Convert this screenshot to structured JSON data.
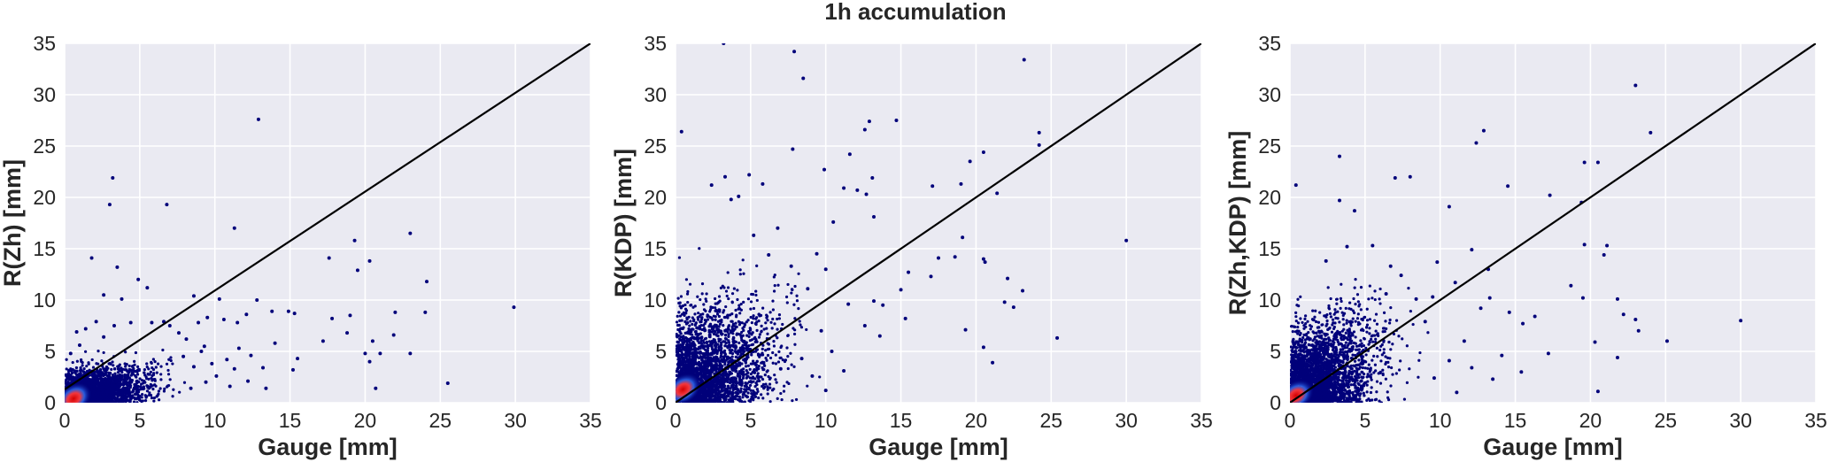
{
  "figure": {
    "title": "1h accumulation"
  },
  "colors": {
    "axes_bg": "#eaeaf2",
    "grid": "#ffffff",
    "point_low": "#00007a",
    "point_mid": "#2f6cf0",
    "point_high": "#d40000",
    "line": "#000000",
    "text": "#262626"
  },
  "chart_data": [
    {
      "type": "scatter",
      "title": "",
      "xlabel": "Gauge [mm]",
      "ylabel": "R(Zh) [mm]",
      "xlim": [
        0,
        35
      ],
      "ylim": [
        0,
        35
      ],
      "xticks": [
        0,
        5,
        10,
        15,
        20,
        25,
        30,
        35
      ],
      "yticks": [
        0,
        5,
        10,
        15,
        20,
        25,
        30,
        35
      ],
      "grid": true,
      "reference_line": {
        "x": [
          0,
          35
        ],
        "y": [
          1.3,
          35
        ]
      },
      "density_color_scale": "blue-to-red",
      "core_region": {
        "x_max": 7.5,
        "y_max": 4.5,
        "density_peak": [
          0.6,
          0.4
        ]
      },
      "points": [
        [
          12.9,
          27.6
        ],
        [
          3.2,
          21.9
        ],
        [
          3.0,
          19.3
        ],
        [
          6.8,
          19.3
        ],
        [
          11.3,
          17.0
        ],
        [
          23.0,
          16.5
        ],
        [
          19.3,
          15.8
        ],
        [
          3.5,
          13.2
        ],
        [
          17.6,
          14.1
        ],
        [
          20.3,
          13.8
        ],
        [
          1.8,
          14.1
        ],
        [
          19.5,
          12.9
        ],
        [
          4.9,
          12.0
        ],
        [
          5.5,
          11.2
        ],
        [
          24.1,
          11.8
        ],
        [
          2.6,
          10.5
        ],
        [
          3.8,
          10.1
        ],
        [
          8.6,
          10.4
        ],
        [
          10.3,
          10.1
        ],
        [
          12.8,
          10.0
        ],
        [
          13.8,
          8.9
        ],
        [
          15.3,
          8.7
        ],
        [
          14.9,
          8.9
        ],
        [
          17.8,
          8.2
        ],
        [
          19.0,
          8.5
        ],
        [
          22.0,
          8.8
        ],
        [
          24.0,
          8.8
        ],
        [
          29.9,
          9.3
        ],
        [
          12.1,
          8.6
        ],
        [
          11.5,
          7.8
        ],
        [
          10.6,
          8.1
        ],
        [
          9.5,
          8.3
        ],
        [
          8.9,
          7.8
        ],
        [
          18.8,
          6.8
        ],
        [
          20.5,
          6.0
        ],
        [
          21.9,
          6.6
        ],
        [
          17.2,
          6.0
        ],
        [
          14.0,
          5.8
        ],
        [
          20.0,
          4.8
        ],
        [
          20.3,
          4.0
        ],
        [
          21.0,
          4.8
        ],
        [
          23.0,
          4.8
        ],
        [
          11.6,
          5.3
        ],
        [
          12.4,
          4.6
        ],
        [
          15.5,
          4.3
        ],
        [
          15.2,
          3.2
        ],
        [
          13.2,
          3.4
        ],
        [
          11.3,
          3.3
        ],
        [
          12.2,
          2.1
        ],
        [
          13.4,
          1.4
        ],
        [
          20.7,
          1.4
        ],
        [
          25.5,
          1.9
        ],
        [
          8.1,
          6.2
        ],
        [
          9.3,
          5.5
        ],
        [
          7.0,
          7.5
        ],
        [
          6.6,
          7.9
        ],
        [
          4.4,
          7.8
        ],
        [
          5.8,
          7.8
        ],
        [
          7.6,
          6.8
        ],
        [
          9.1,
          5.0
        ],
        [
          10.8,
          4.2
        ],
        [
          8.6,
          3.5
        ],
        [
          9.8,
          3.8
        ],
        [
          7.9,
          4.5
        ],
        [
          10.1,
          2.6
        ],
        [
          9.4,
          2.0
        ],
        [
          11.0,
          1.6
        ],
        [
          8.4,
          1.4
        ],
        [
          0.8,
          6.9
        ],
        [
          1.4,
          7.2
        ],
        [
          2.1,
          7.9
        ],
        [
          1.0,
          5.6
        ],
        [
          0.4,
          4.8
        ],
        [
          2.6,
          6.4
        ],
        [
          3.3,
          7.5
        ]
      ]
    },
    {
      "type": "scatter",
      "title": "",
      "xlabel": "Gauge [mm]",
      "ylabel": "R(KDP) [mm]",
      "xlim": [
        0,
        35
      ],
      "ylim": [
        0,
        35
      ],
      "xticks": [
        0,
        5,
        10,
        15,
        20,
        25,
        30,
        35
      ],
      "yticks": [
        0,
        5,
        10,
        15,
        20,
        25,
        30,
        35
      ],
      "grid": true,
      "reference_line": {
        "x": [
          0,
          35
        ],
        "y": [
          0,
          35
        ]
      },
      "density_color_scale": "blue-to-red",
      "core_region": {
        "x_max": 9.0,
        "y_max": 13.0,
        "density_peak": [
          0.5,
          1.3
        ]
      },
      "points": [
        [
          3.2,
          35.0
        ],
        [
          7.9,
          34.2
        ],
        [
          23.2,
          33.4
        ],
        [
          8.5,
          31.6
        ],
        [
          12.9,
          27.4
        ],
        [
          14.7,
          27.5
        ],
        [
          12.6,
          26.6
        ],
        [
          0.4,
          26.4
        ],
        [
          24.2,
          26.3
        ],
        [
          24.2,
          25.1
        ],
        [
          7.8,
          24.7
        ],
        [
          11.6,
          24.2
        ],
        [
          20.5,
          24.4
        ],
        [
          19.6,
          23.5
        ],
        [
          9.9,
          22.7
        ],
        [
          3.3,
          22.0
        ],
        [
          4.9,
          22.2
        ],
        [
          13.1,
          21.9
        ],
        [
          5.8,
          21.3
        ],
        [
          2.4,
          21.2
        ],
        [
          11.2,
          20.9
        ],
        [
          17.1,
          21.1
        ],
        [
          19.0,
          21.3
        ],
        [
          21.4,
          20.4
        ],
        [
          12.1,
          20.7
        ],
        [
          4.2,
          20.1
        ],
        [
          3.7,
          19.8
        ],
        [
          12.7,
          20.3
        ],
        [
          13.2,
          18.1
        ],
        [
          10.5,
          17.6
        ],
        [
          6.8,
          17.0
        ],
        [
          5.2,
          16.3
        ],
        [
          18.6,
          14.2
        ],
        [
          20.5,
          14.0
        ],
        [
          17.5,
          14.1
        ],
        [
          19.1,
          16.1
        ],
        [
          20.6,
          13.7
        ],
        [
          22.1,
          12.1
        ],
        [
          23.1,
          10.9
        ],
        [
          21.9,
          9.8
        ],
        [
          22.5,
          9.3
        ],
        [
          17.0,
          12.3
        ],
        [
          15.5,
          12.7
        ],
        [
          15.0,
          11.0
        ],
        [
          15.3,
          8.2
        ],
        [
          13.8,
          9.5
        ],
        [
          13.2,
          9.9
        ],
        [
          11.5,
          9.6
        ],
        [
          12.6,
          7.5
        ],
        [
          13.6,
          6.5
        ],
        [
          25.4,
          6.3
        ],
        [
          19.3,
          7.1
        ],
        [
          20.5,
          5.4
        ],
        [
          21.1,
          3.9
        ],
        [
          30.0,
          15.8
        ],
        [
          9.4,
          14.5
        ],
        [
          10.0,
          13.0
        ],
        [
          7.7,
          13.3
        ],
        [
          9.7,
          7.0
        ],
        [
          10.4,
          5.0
        ],
        [
          11.2,
          3.1
        ],
        [
          10.0,
          1.2
        ],
        [
          8.4,
          4.3
        ],
        [
          7.0,
          3.3
        ],
        [
          9.1,
          2.6
        ],
        [
          8.8,
          11.1
        ],
        [
          6.2,
          14.4
        ]
      ]
    },
    {
      "type": "scatter",
      "title": "",
      "xlabel": "Gauge [mm]",
      "ylabel": "R(Zh,KDP) [mm]",
      "xlim": [
        0,
        35
      ],
      "ylim": [
        0,
        35
      ],
      "xticks": [
        0,
        5,
        10,
        15,
        20,
        25,
        30,
        35
      ],
      "yticks": [
        0,
        5,
        10,
        15,
        20,
        25,
        30,
        35
      ],
      "grid": true,
      "reference_line": {
        "x": [
          0,
          35
        ],
        "y": [
          0,
          35
        ]
      },
      "density_color_scale": "blue-to-red",
      "core_region": {
        "x_max": 8.0,
        "y_max": 11.0,
        "density_peak": [
          0.4,
          0.7
        ]
      },
      "points": [
        [
          23.0,
          30.9
        ],
        [
          12.9,
          26.5
        ],
        [
          24.0,
          26.3
        ],
        [
          12.4,
          25.3
        ],
        [
          3.3,
          24.0
        ],
        [
          19.6,
          23.4
        ],
        [
          20.5,
          23.4
        ],
        [
          7.0,
          21.9
        ],
        [
          8.0,
          22.0
        ],
        [
          0.4,
          21.2
        ],
        [
          14.5,
          21.1
        ],
        [
          17.3,
          20.2
        ],
        [
          19.4,
          19.5
        ],
        [
          3.3,
          19.7
        ],
        [
          4.3,
          18.7
        ],
        [
          10.6,
          19.1
        ],
        [
          12.1,
          14.9
        ],
        [
          19.6,
          15.4
        ],
        [
          21.1,
          15.3
        ],
        [
          20.9,
          14.4
        ],
        [
          13.2,
          13.0
        ],
        [
          9.8,
          13.7
        ],
        [
          18.7,
          11.4
        ],
        [
          21.8,
          10.1
        ],
        [
          19.5,
          10.2
        ],
        [
          22.2,
          8.6
        ],
        [
          23.2,
          7.0
        ],
        [
          20.3,
          5.9
        ],
        [
          25.1,
          6.0
        ],
        [
          30.0,
          8.0
        ],
        [
          23.0,
          8.1
        ],
        [
          21.8,
          4.4
        ],
        [
          20.5,
          1.1
        ],
        [
          17.2,
          4.8
        ],
        [
          15.4,
          3.0
        ],
        [
          14.1,
          4.6
        ],
        [
          11.6,
          6.0
        ],
        [
          12.1,
          3.4
        ],
        [
          13.5,
          2.3
        ],
        [
          11.1,
          1.0
        ],
        [
          10.6,
          4.1
        ],
        [
          9.6,
          2.4
        ],
        [
          12.7,
          9.2
        ],
        [
          13.3,
          10.2
        ],
        [
          14.6,
          8.8
        ],
        [
          15.5,
          7.7
        ],
        [
          16.3,
          8.4
        ],
        [
          11.0,
          11.7
        ],
        [
          9.5,
          10.3
        ],
        [
          9.0,
          7.9
        ],
        [
          7.4,
          12.4
        ],
        [
          6.7,
          13.3
        ],
        [
          5.5,
          15.3
        ],
        [
          6.4,
          10.6
        ],
        [
          8.4,
          10.1
        ],
        [
          2.4,
          13.8
        ],
        [
          3.8,
          15.2
        ]
      ]
    }
  ]
}
